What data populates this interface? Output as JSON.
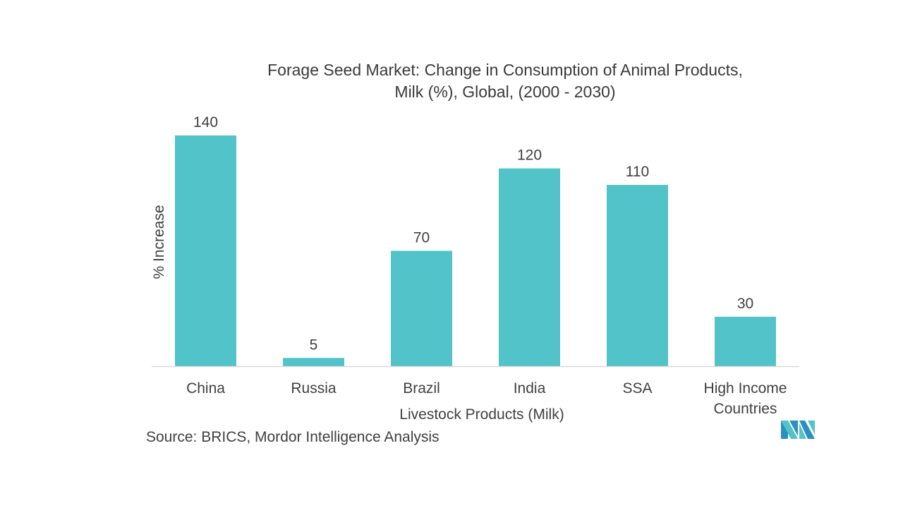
{
  "chart_data": {
    "type": "bar",
    "title": "Forage Seed Market: Change in Consumption of Animal Products, Milk (%), Global,  (2000 - 2030)",
    "title_lines": [
      "Forage Seed Market: Change in Consumption of Animal Products,",
      "Milk (%), Global,  (2000 - 2030)"
    ],
    "categories": [
      "China",
      "Russia",
      "Brazil",
      "India",
      "SSA",
      "High Income Countries"
    ],
    "category_lines": [
      [
        "China"
      ],
      [
        "Russia"
      ],
      [
        "Brazil"
      ],
      [
        "India"
      ],
      [
        "SSA"
      ],
      [
        "High Income",
        "Countries"
      ]
    ],
    "values": [
      140,
      5,
      70,
      120,
      110,
      30
    ],
    "data_labels": [
      "140",
      "5",
      "70",
      "120",
      "110",
      "30"
    ],
    "xlabel": "Livestock Products  (Milk)",
    "ylabel": "% Increase",
    "ylim": [
      0,
      140
    ],
    "grid": false,
    "legend": "none",
    "bar_color": "#52c3c8",
    "axis_color": "#d9d9d9"
  },
  "source": "Source: BRICS, Mordor Intelligence Analysis",
  "logo": {
    "name": "mordor-intelligence-logo",
    "colors": [
      "#2a8fc2",
      "#52c3c8"
    ]
  }
}
